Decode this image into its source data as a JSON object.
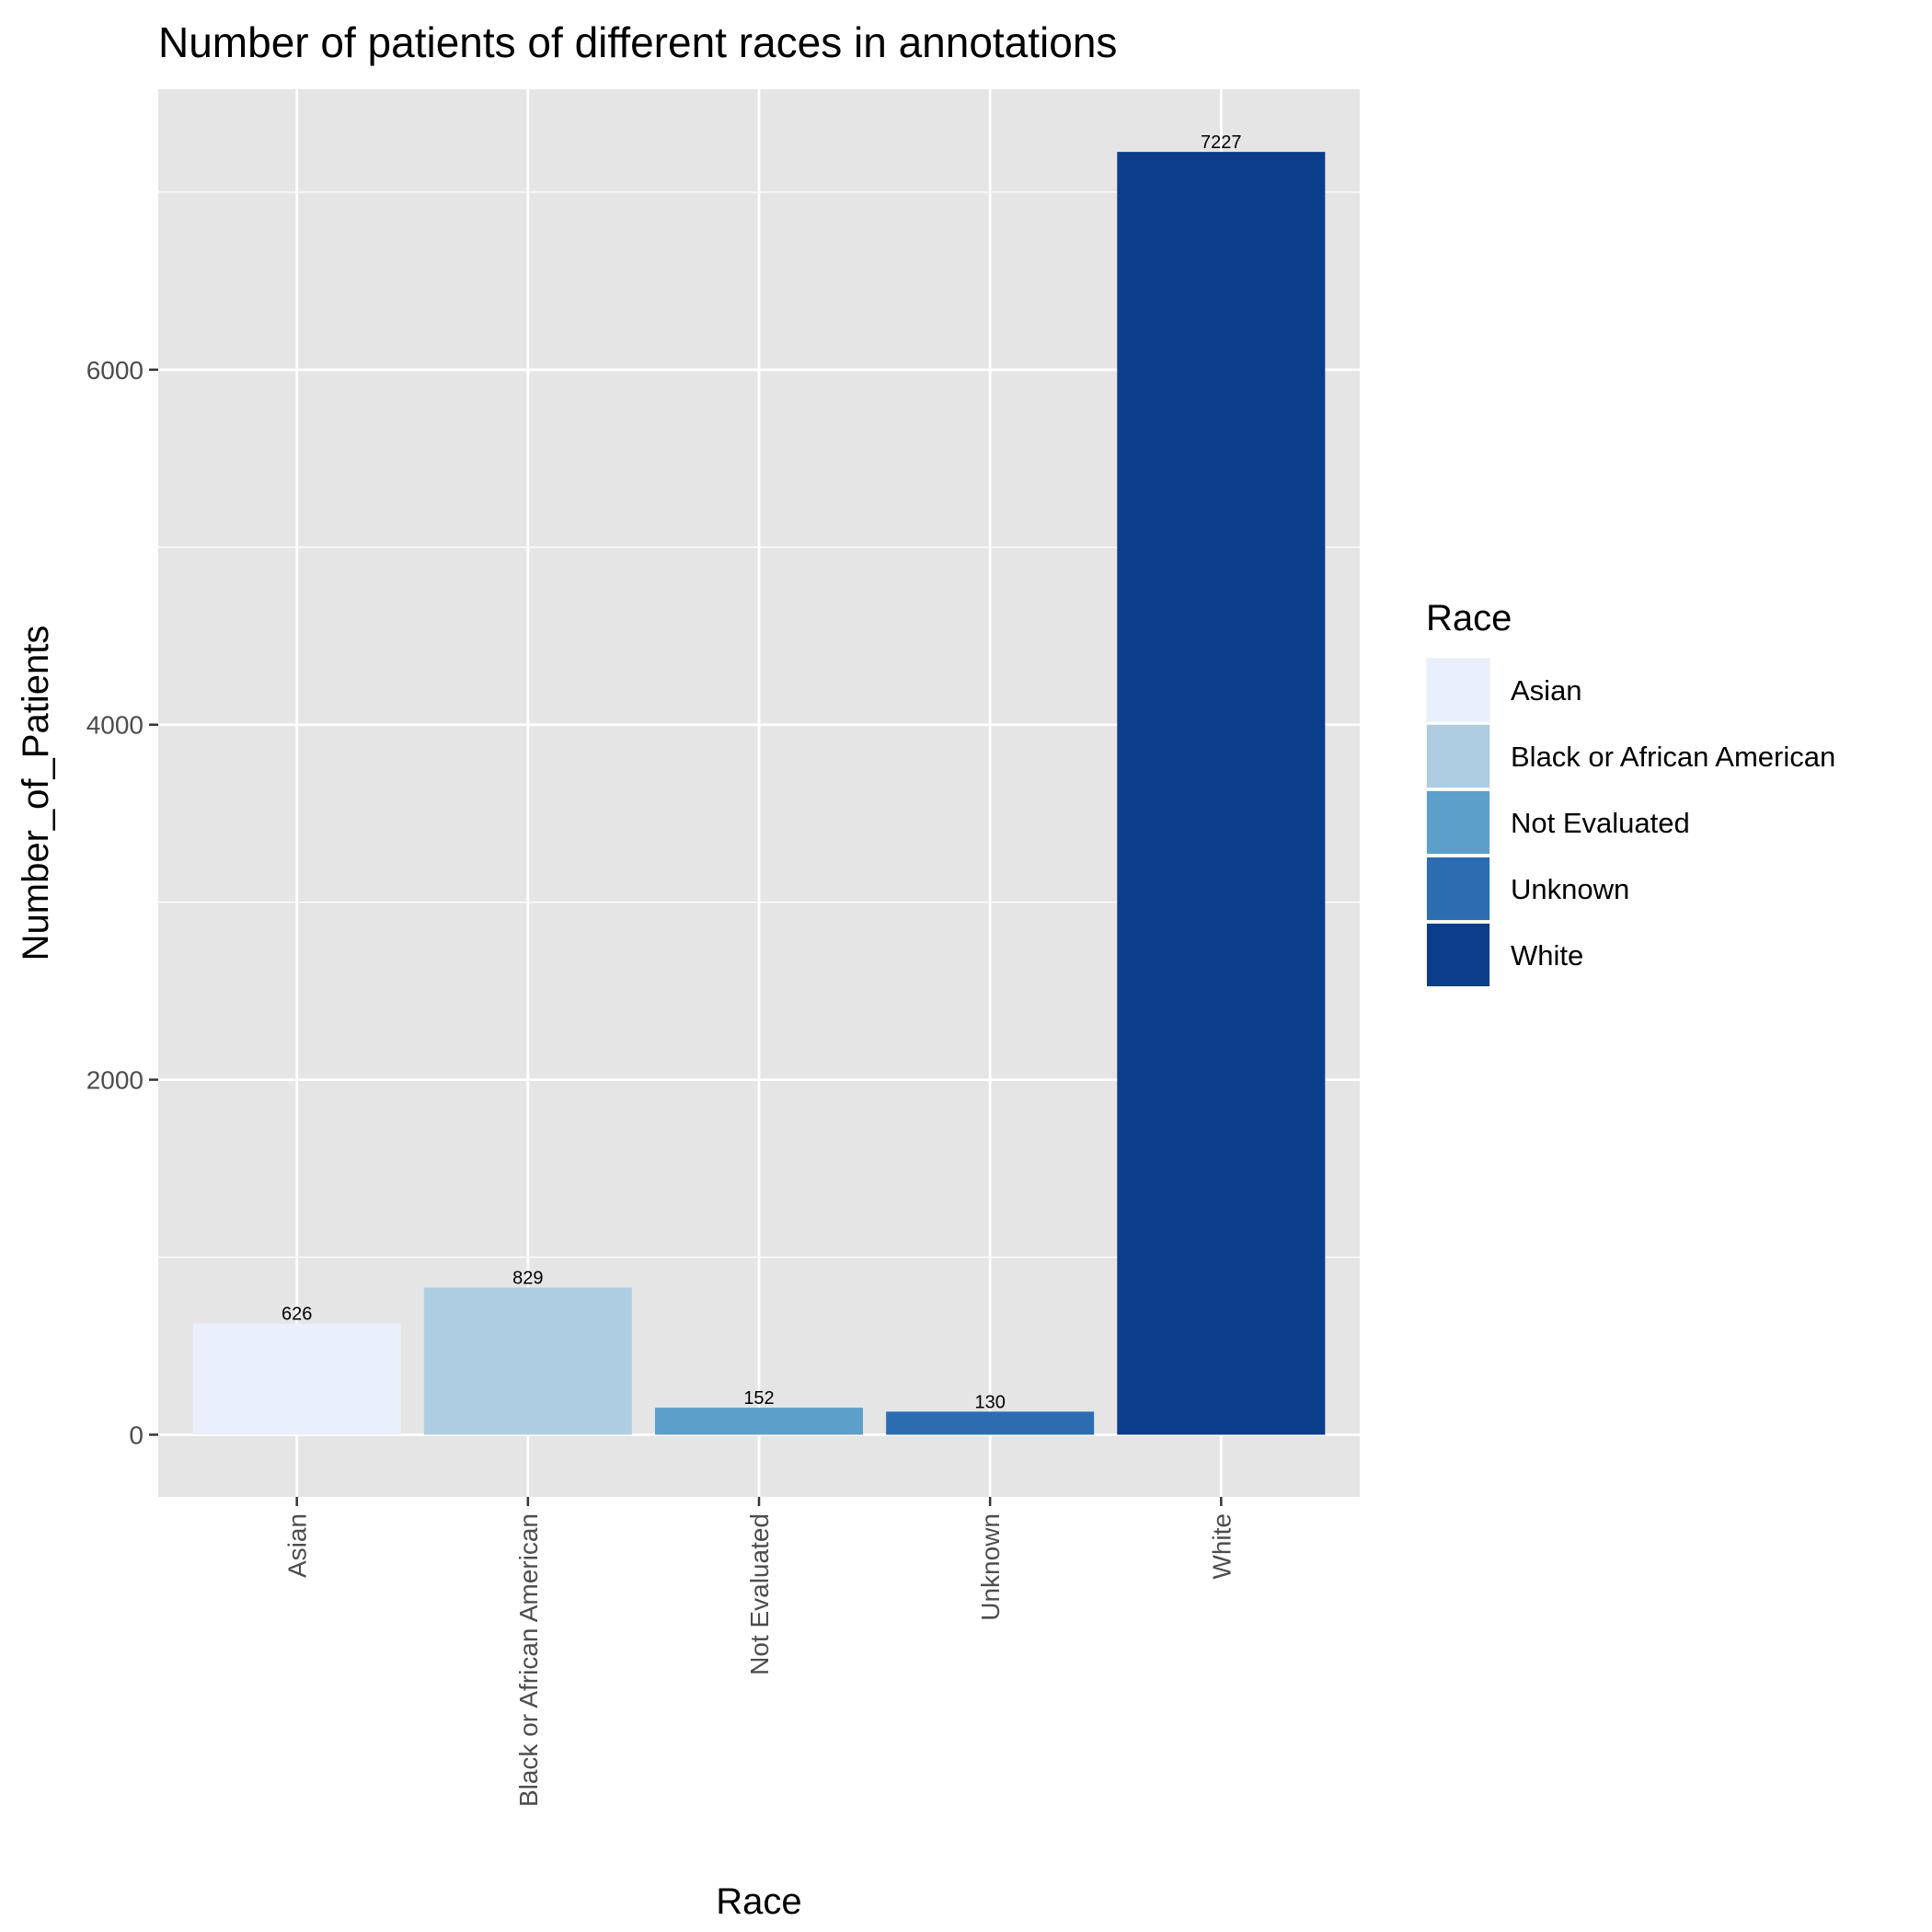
{
  "chart_data": {
    "type": "bar",
    "title": "Number of patients of different races in annotations",
    "xlabel": "Race",
    "ylabel": "Number_of_Patients",
    "categories": [
      "Asian",
      "Black or African American",
      "Not Evaluated",
      "Unknown",
      "White"
    ],
    "values": [
      626,
      829,
      152,
      130,
      7227
    ],
    "data_labels": [
      "626",
      "829",
      "152",
      "130",
      "7227"
    ],
    "colors": [
      "#eaf0fb",
      "#afcde2",
      "#5c9fcb",
      "#2b6db0",
      "#0c3d8a"
    ],
    "ylim": [
      -350,
      7580
    ],
    "y_ticks": [
      0,
      2000,
      4000,
      6000
    ],
    "y_tick_labels": [
      "0",
      "2000",
      "4000",
      "6000"
    ],
    "grid": true,
    "panel_color": "#e5e5e5",
    "legend": {
      "title": "Race",
      "placement": "right",
      "entries": [
        "Asian",
        "Black or African American",
        "Not Evaluated",
        "Unknown",
        "White"
      ]
    }
  }
}
